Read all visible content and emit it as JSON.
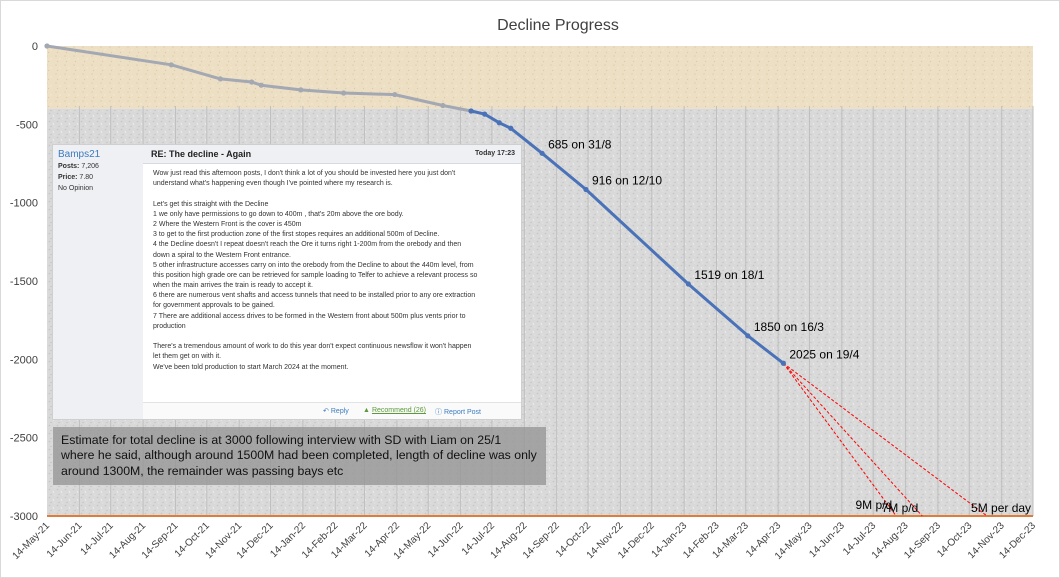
{
  "chart_data": {
    "type": "line",
    "title": "Decline Progress",
    "xlabel": "",
    "ylabel": "",
    "ylim": [
      -3000,
      0
    ],
    "yticks": [
      0,
      -500,
      -1000,
      -1500,
      -2000,
      -2500,
      -3000
    ],
    "xlim": [
      "2021-05-14",
      "2023-12-14"
    ],
    "xtick_labels": [
      "14-May-21",
      "14-Jun-21",
      "14-Jul-21",
      "14-Aug-21",
      "14-Sep-21",
      "14-Oct-21",
      "14-Nov-21",
      "14-Dec-21",
      "14-Jan-22",
      "14-Feb-22",
      "14-Mar-22",
      "14-Apr-22",
      "14-May-22",
      "14-Jun-22",
      "14-Jul-22",
      "14-Aug-22",
      "14-Sep-22",
      "14-Oct-22",
      "14-Nov-22",
      "14-Dec-22",
      "14-Jan-23",
      "14-Feb-23",
      "14-Mar-23",
      "14-Apr-23",
      "14-May-23",
      "14-Jun-23",
      "14-Jul-23",
      "14-Aug-23",
      "14-Sep-23",
      "14-Oct-23",
      "14-Nov-23",
      "14-Dec-23"
    ],
    "grid": true,
    "legend": "none",
    "series": [
      {
        "color": "#a3a8b3",
        "points": [
          {
            "x": "2021-05-14",
            "y": 0
          },
          {
            "x": "2021-09-10",
            "y": -120
          },
          {
            "x": "2021-10-27",
            "y": -210
          },
          {
            "x": "2021-11-26",
            "y": -230
          },
          {
            "x": "2021-12-05",
            "y": -250
          },
          {
            "x": "2022-01-12",
            "y": -280
          },
          {
            "x": "2022-02-22",
            "y": -300
          },
          {
            "x": "2022-04-12",
            "y": -310
          },
          {
            "x": "2022-05-28",
            "y": -380
          },
          {
            "x": "2022-06-24",
            "y": -415
          }
        ]
      },
      {
        "color": "#4a72b8",
        "points": [
          {
            "x": "2022-06-24",
            "y": -415
          },
          {
            "x": "2022-07-07",
            "y": -435
          },
          {
            "x": "2022-07-21",
            "y": -490
          },
          {
            "x": "2022-08-01",
            "y": -525
          },
          {
            "x": "2022-08-31",
            "y": -685,
            "label": "685 on 31/8"
          },
          {
            "x": "2022-10-12",
            "y": -916,
            "label": "916 on 12/10"
          },
          {
            "x": "2023-01-18",
            "y": -1519,
            "label": "1519 on 18/1"
          },
          {
            "x": "2023-03-16",
            "y": -1850,
            "label": "1850 on 16/3"
          },
          {
            "x": "2023-04-19",
            "y": -2025,
            "label": "2025 on 19/4"
          }
        ]
      }
    ],
    "projections": [
      {
        "label": "9M p/d",
        "color": "#ff0000",
        "points": [
          {
            "x": "2023-04-19",
            "y": -2025
          },
          {
            "x": "2023-08-05",
            "y": -3000
          }
        ]
      },
      {
        "label": "7M p/d",
        "color": "#ff0000",
        "points": [
          {
            "x": "2023-04-19",
            "y": -2025
          },
          {
            "x": "2023-08-30",
            "y": -3000
          }
        ]
      },
      {
        "label": "5M per day",
        "color": "#ff0000",
        "points": [
          {
            "x": "2023-04-19",
            "y": -2025
          },
          {
            "x": "2023-10-31",
            "y": -3000
          }
        ]
      }
    ],
    "target_line": {
      "y": -3000,
      "color": "#e07b39"
    },
    "bands": [
      {
        "name": "upper",
        "y_from": 0,
        "y_to": -400,
        "color": "#eadcc0"
      },
      {
        "name": "lower",
        "y_from": -400,
        "y_to": -3000,
        "color": "#dcdcdc"
      }
    ]
  },
  "forum_post": {
    "username": "Bamps21",
    "posts_label": "Posts:",
    "posts_value": "7,206",
    "price_label": "Price:",
    "price_value": "7.80",
    "opinion": "No Opinion",
    "subject": "RE: The decline - Again",
    "time": "Today 17:23",
    "body_lines": [
      "Wow just read this afternoon posts, I don't think a lot of you should be invested here you just don't",
      "understand what's happening even though I've pointed where my research is.",
      "",
      "Let's get this straight with the Decline",
      "1 we only have permissions to go down to 400m , that's 20m above the ore body.",
      "2 Where the Western Front is the cover is 450m",
      "3 to get to the first production zone of the first stopes requires an additional 500m of Decline.",
      "4 the Decline doesn't I repeat doesn't reach the Ore it turns right 1-200m from the orebody and then",
      "down a spiral to the Western Front entrance.",
      "5 other infrastructure accesses carry on into the orebody from the Decline to about the 440m level, from",
      "this position high grade ore can be retrieved for sample loading to Telfer to achieve a relevant process so",
      "when the main arrives the train is ready to accept it.",
      "6 there are numerous vent shafts and access tunnels that need to be installed prior to any ore extraction",
      "for government approvals to be gained.",
      "7 There are additional access drives to be formed in the Western front about 500m plus vents prior to",
      "production",
      "",
      "There's a tremendous amount of work to do this year don't expect continuous newsflow it won't happen",
      "let them get on with it.",
      "We've been told production to start March 2024 at the moment."
    ],
    "reply_label": "Reply",
    "recommend_label": "Recommend (26)",
    "report_label": "Report Post"
  },
  "note_text": "Estimate for total decline is at 3000 following interview with SD with Liam on 25/1 where he said, although around 1500M had been completed, length of decline was only around 1300M, the remainder was passing bays etc",
  "icons": {
    "reply": "reply-arrow-icon",
    "recommend": "thumbs-up-icon",
    "report": "info-circle-icon"
  }
}
